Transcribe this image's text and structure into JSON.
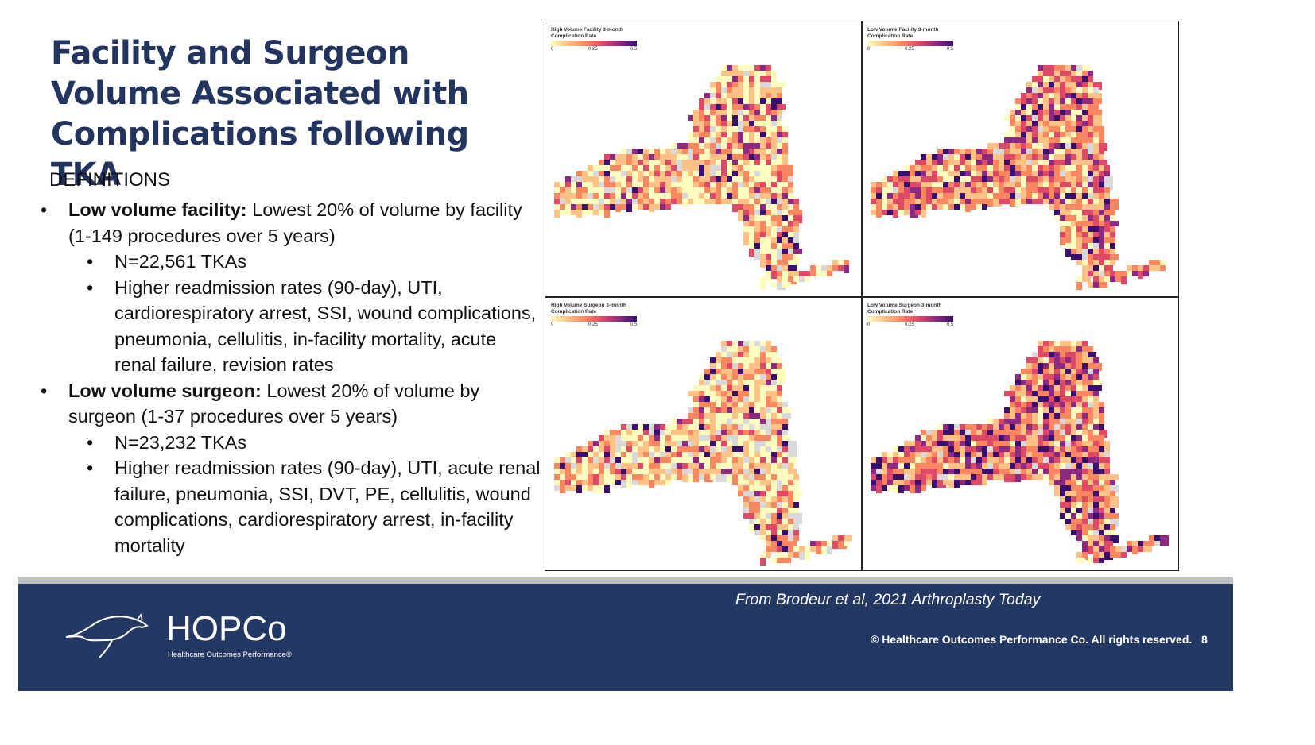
{
  "slide": {
    "title": "Facility and Surgeon Volume Associated with Complications following TKA",
    "definitions_heading": "DEFINITIONS",
    "bullets": [
      {
        "bold": "Low volume facility:",
        "text": " Lowest 20% of volume by facility (1-149 procedures over 5 years)",
        "sub": [
          "N=22,561 TKAs",
          "Higher readmission rates (90-day), UTI, cardiorespiratory arrest, SSI, wound complications, pneumonia, cellulitis, in-facility mortality, acute renal failure, revision rates"
        ]
      },
      {
        "bold": "Low volume surgeon:",
        "text": " Lowest 20% of volume by surgeon (1-37 procedures over 5 years)",
        "sub": [
          "N=23,232 TKAs",
          "Higher readmission rates (90-day), UTI, acute renal failure, pneumonia, SSI, DVT, PE, cellulitis, wound complications, cardiorespiratory arrest, in-facility mortality"
        ]
      }
    ]
  },
  "maps": [
    {
      "title": "High Volume Facility 3-month Complication Rate",
      "ticks": [
        "0",
        "0.25",
        "0.5"
      ]
    },
    {
      "title": "Low Volume Facility 3-month Complication Rate",
      "ticks": [
        "0",
        "0.25",
        "0.5"
      ]
    },
    {
      "title": "High Volume Surgeon 3-month Complication Rate",
      "ticks": [
        "0",
        "0.25",
        "0.5"
      ]
    },
    {
      "title": "Low Volume Surgeon 3-month Complication Rate",
      "ticks": [
        "0",
        "0.25",
        "0.5"
      ]
    }
  ],
  "palette": [
    "#fcfdbf",
    "#fec287",
    "#fb8761",
    "#de4968",
    "#8c2981",
    "#3b0f70",
    "#d9d9d9"
  ],
  "footer": {
    "citation": "From Brodeur et al, 2021 Arthroplasty Today",
    "logo_name": "HOPCo",
    "logo_sub": "Healthcare Outcomes Performance®",
    "copyright": "© Healthcare Outcomes Performance Co. All rights reserved.",
    "page_number": "8"
  }
}
